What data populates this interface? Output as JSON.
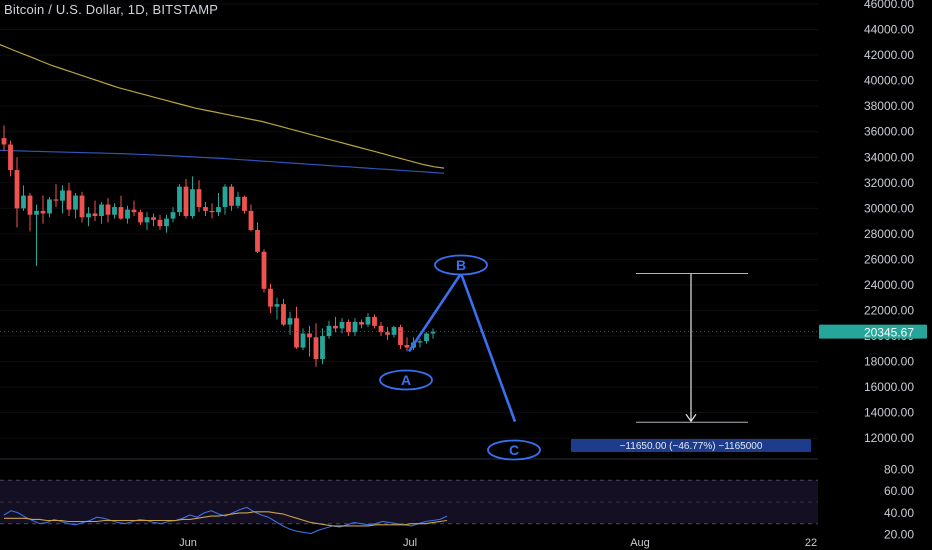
{
  "header": {
    "title": "Bitcoin / U.S. Dollar, 1D, BITSTAMP"
  },
  "colors": {
    "background": "#000000",
    "up": "#26a69a",
    "down": "#ef5350",
    "ma_long": "#b8a53a",
    "ma_mid": "#2f53b8",
    "wave": "#3a6ff0",
    "rsi": "#3b6fe0",
    "rsi_ma": "#c6a24b",
    "price_badge": "#26a69a",
    "measure_badge": "#1d3d8c"
  },
  "annotations": {
    "wave_a": "A",
    "wave_b": "B",
    "wave_c": "C",
    "measure_label": "−11650.00 (−46.77%) −1165000",
    "current_price": "20345.67"
  },
  "chart_data": [
    {
      "type": "candlestick",
      "title": "Bitcoin / U.S. Dollar, 1D, BITSTAMP",
      "xlabel": "",
      "ylabel": "",
      "ylim": [
        11000,
        46000
      ],
      "y_ticks": [
        "46000.00",
        "44000.00",
        "42000.00",
        "40000.00",
        "38000.00",
        "36000.00",
        "34000.00",
        "32000.00",
        "30000.00",
        "28000.00",
        "26000.00",
        "24000.00",
        "22000.00",
        "20000.00",
        "18000.00",
        "16000.00",
        "14000.00",
        "12000.00"
      ],
      "x_ticks": [
        "Jun",
        "Jul",
        "Aug",
        "22"
      ],
      "current_price": 20345.67,
      "ohlc": [
        [
          35500,
          36500,
          34500,
          35000
        ],
        [
          35000,
          35300,
          32500,
          33000
        ],
        [
          33000,
          34000,
          28500,
          30000
        ],
        [
          30000,
          31800,
          29800,
          31000
        ],
        [
          31000,
          31200,
          28200,
          29500
        ],
        [
          29500,
          30300,
          25500,
          29800
        ],
        [
          29800,
          31000,
          28800,
          29600
        ],
        [
          29600,
          30900,
          29300,
          30700
        ],
        [
          30700,
          31900,
          30100,
          30600
        ],
        [
          30600,
          31800,
          29600,
          31400
        ],
        [
          31400,
          32000,
          29400,
          29900
        ],
        [
          29900,
          31200,
          29200,
          31000
        ],
        [
          31000,
          31300,
          28900,
          29300
        ],
        [
          29300,
          30100,
          28600,
          29600
        ],
        [
          29600,
          30600,
          29000,
          29400
        ],
        [
          29400,
          30500,
          28800,
          30300
        ],
        [
          30300,
          30800,
          28900,
          29500
        ],
        [
          29500,
          30400,
          29200,
          30100
        ],
        [
          30100,
          31000,
          29100,
          29200
        ],
        [
          29200,
          30200,
          28800,
          29900
        ],
        [
          29900,
          30600,
          29400,
          29700
        ],
        [
          29700,
          29900,
          28700,
          28900
        ],
        [
          28900,
          29700,
          28300,
          29300
        ],
        [
          29300,
          29600,
          28600,
          29100
        ],
        [
          29100,
          29500,
          28300,
          28600
        ],
        [
          28600,
          29500,
          28100,
          29200
        ],
        [
          29200,
          30100,
          28900,
          29700
        ],
        [
          29700,
          31900,
          29400,
          31700
        ],
        [
          31700,
          32300,
          29200,
          29400
        ],
        [
          29400,
          32500,
          29200,
          31500
        ],
        [
          31500,
          32200,
          29700,
          30100
        ],
        [
          30100,
          30500,
          29400,
          29800
        ],
        [
          29800,
          30400,
          29200,
          29700
        ],
        [
          29700,
          31200,
          29400,
          30100
        ],
        [
          30100,
          31900,
          29500,
          31700
        ],
        [
          31700,
          31900,
          29800,
          30200
        ],
        [
          30200,
          31300,
          30000,
          30900
        ],
        [
          30900,
          31000,
          29600,
          29800
        ],
        [
          29800,
          30300,
          28200,
          28300
        ],
        [
          28300,
          28900,
          26500,
          26600
        ],
        [
          26600,
          26800,
          23400,
          23700
        ],
        [
          23700,
          24100,
          21800,
          22300
        ],
        [
          22300,
          23000,
          21300,
          22500
        ],
        [
          22500,
          22900,
          20800,
          20900
        ],
        [
          20900,
          21900,
          20100,
          21400
        ],
        [
          21400,
          22300,
          19000,
          19100
        ],
        [
          19100,
          20600,
          18900,
          20200
        ],
        [
          20200,
          20800,
          18400,
          19900
        ],
        [
          19900,
          21000,
          17600,
          18200
        ],
        [
          18200,
          20600,
          17800,
          20000
        ],
        [
          20000,
          21200,
          19800,
          20800
        ],
        [
          20800,
          21500,
          20300,
          20600
        ],
        [
          20600,
          21400,
          20200,
          21100
        ],
        [
          21100,
          21300,
          20000,
          20300
        ],
        [
          20300,
          21400,
          20000,
          21100
        ],
        [
          21100,
          21300,
          20600,
          20900
        ],
        [
          20900,
          21800,
          20700,
          21500
        ],
        [
          21500,
          21700,
          20600,
          20800
        ],
        [
          20800,
          21100,
          20000,
          20300
        ],
        [
          20300,
          20700,
          19700,
          20100
        ],
        [
          20100,
          20800,
          19900,
          20700
        ],
        [
          20700,
          20900,
          19000,
          19300
        ],
        [
          19300,
          19900,
          18800,
          19100
        ],
        [
          19100,
          19900,
          18900,
          19500
        ],
        [
          19500,
          19800,
          19100,
          19600
        ],
        [
          19600,
          20300,
          19400,
          20200
        ],
        [
          20200,
          20600,
          19800,
          20350
        ]
      ],
      "series": [
        {
          "values": [
            43000,
            42700,
            42400,
            42100,
            41800,
            41500,
            41200,
            40950,
            40700,
            40450,
            40200,
            39950,
            39700,
            39450,
            39250,
            39050,
            38850,
            38650,
            38450,
            38250,
            38050,
            37850,
            37700,
            37550,
            37400,
            37250,
            37100,
            36950,
            36800,
            36600,
            36400,
            36200,
            36000,
            35800,
            35600,
            35400,
            35200,
            35000,
            34800,
            34600,
            34400,
            34200,
            34000,
            33800,
            33600,
            33400,
            33250,
            33150
          ]
        },
        {
          "values": [
            34550,
            34530,
            34510,
            34490,
            34470,
            34450,
            34430,
            34410,
            34390,
            34370,
            34350,
            34330,
            34310,
            34290,
            34260,
            34230,
            34200,
            34170,
            34140,
            34100,
            34060,
            34020,
            33980,
            33940,
            33900,
            33850,
            33800,
            33750,
            33700,
            33650,
            33600,
            33550,
            33500,
            33450,
            33400,
            33350,
            33300,
            33250,
            33200,
            33150,
            33100,
            33050,
            33000,
            32950,
            32900,
            32850,
            32800,
            32750
          ]
        }
      ],
      "waves": [
        {
          "label": "A",
          "date_index": 62,
          "price": 18800
        },
        {
          "label": "B",
          "date_index": 70,
          "price": 24850
        },
        {
          "label": "C",
          "date_index": 76,
          "price": 13250
        }
      ],
      "measure": {
        "from": 24900,
        "to": 13250,
        "change": -11650,
        "percent": -46.77,
        "label": "−11650.00 (−46.77%) −1165000"
      }
    },
    {
      "type": "line",
      "title": "",
      "ylim": [
        15,
        85
      ],
      "y_ticks": [
        "80.00",
        "60.00",
        "40.00",
        "20.00"
      ],
      "bands": [
        70,
        30
      ],
      "series": [
        {
          "values": [
            38,
            42,
            40,
            36,
            33,
            30,
            31,
            34,
            32,
            30,
            29,
            31,
            33,
            36,
            35,
            33,
            31,
            30,
            32,
            34,
            33,
            31,
            30,
            32,
            33,
            35,
            38,
            36,
            40,
            42,
            39,
            37,
            40,
            43,
            45,
            41,
            38,
            36,
            32,
            28,
            25,
            23,
            22,
            21,
            24,
            26,
            28,
            27,
            29,
            31,
            30,
            29,
            30,
            32,
            31,
            30,
            29,
            28,
            30,
            32,
            33,
            34,
            37
          ]
        },
        {
          "values": [
            35,
            35,
            35,
            35,
            34,
            34,
            33,
            33,
            33,
            32,
            32,
            32,
            32,
            32,
            33,
            33,
            33,
            33,
            33,
            33,
            33,
            33,
            33,
            33,
            33,
            34,
            34,
            35,
            36,
            37,
            37,
            38,
            39,
            40,
            40,
            41,
            41,
            41,
            40,
            39,
            37,
            35,
            33,
            31,
            30,
            29,
            28,
            28,
            28,
            28,
            28,
            28,
            29,
            29,
            29,
            29,
            29,
            30,
            30,
            30,
            31,
            32,
            33
          ]
        }
      ]
    }
  ]
}
